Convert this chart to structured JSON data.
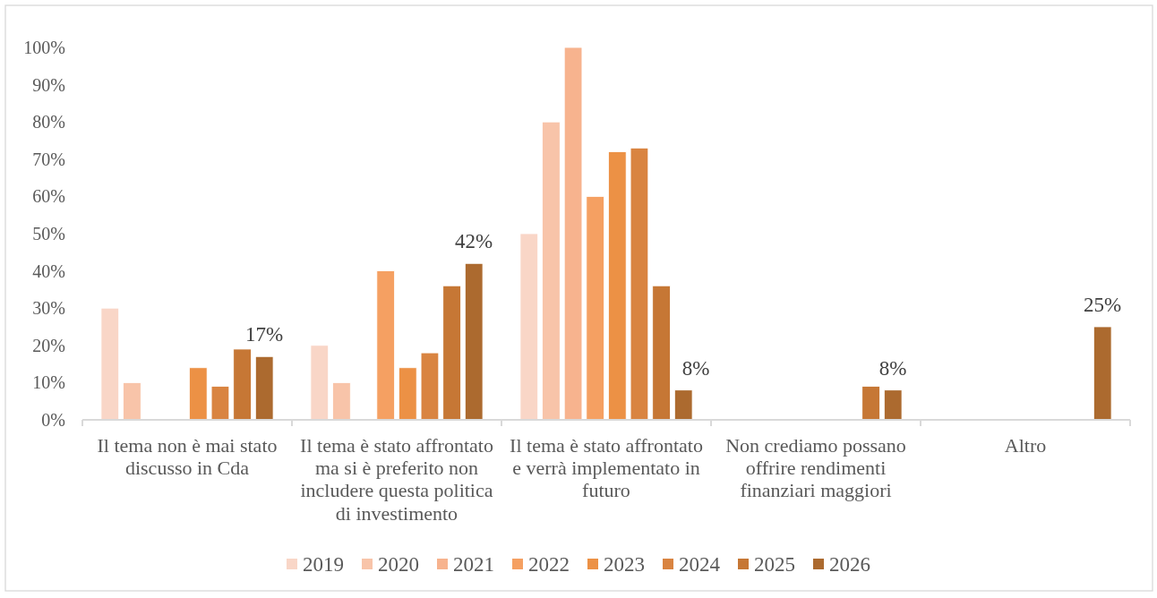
{
  "chart_data": {
    "type": "bar",
    "categories": [
      "Il tema non è mai stato discusso in Cda",
      "Il tema è stato affrontato ma si è preferito non includere questa politica di investimento",
      "Il tema è stato affrontato e verrà implementato in futuro",
      "Non crediamo possano offrire rendimenti finanziari maggiori",
      "Altro"
    ],
    "series": [
      {
        "name": "2019",
        "color": "#f9d6c7",
        "values": [
          30,
          20,
          50,
          null,
          null
        ]
      },
      {
        "name": "2020",
        "color": "#f8c4a9",
        "values": [
          10,
          10,
          80,
          null,
          null
        ]
      },
      {
        "name": "2021",
        "color": "#f7b38e",
        "values": [
          null,
          null,
          100,
          null,
          null
        ]
      },
      {
        "name": "2022",
        "color": "#f5a062",
        "values": [
          null,
          40,
          60,
          null,
          null
        ]
      },
      {
        "name": "2023",
        "color": "#ec9145",
        "values": [
          14,
          14,
          72,
          null,
          null
        ]
      },
      {
        "name": "2024",
        "color": "#d98441",
        "values": [
          9,
          18,
          73,
          null,
          null
        ]
      },
      {
        "name": "2025",
        "color": "#c67735",
        "values": [
          19,
          36,
          36,
          9,
          null
        ]
      },
      {
        "name": "2026",
        "color": "#ac6a2f",
        "values": [
          17,
          42,
          8,
          8,
          25
        ],
        "value_labels": [
          "17%",
          "42%",
          "8%",
          "8%",
          "25%"
        ]
      }
    ],
    "ylim": [
      0,
      100
    ],
    "yticks": [
      {
        "value": 0,
        "label": "0%"
      },
      {
        "value": 10,
        "label": "10%"
      },
      {
        "value": 20,
        "label": "20%"
      },
      {
        "value": 30,
        "label": "30%"
      },
      {
        "value": 40,
        "label": "40%"
      },
      {
        "value": 50,
        "label": "50%"
      },
      {
        "value": 60,
        "label": "60%"
      },
      {
        "value": 70,
        "label": "70%"
      },
      {
        "value": 80,
        "label": "80%"
      },
      {
        "value": 90,
        "label": "90%"
      },
      {
        "value": 100,
        "label": "100%"
      }
    ],
    "legend": "bottom"
  }
}
